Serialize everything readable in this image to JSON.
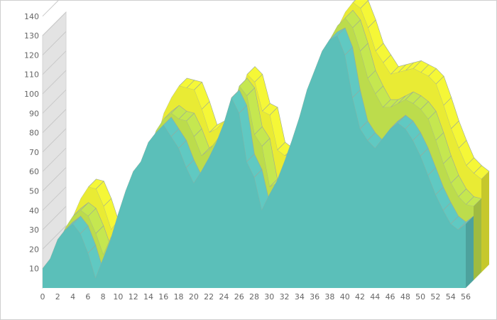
{
  "chart_data": {
    "type": "area",
    "style": "3d-stacked",
    "grid": false,
    "legend": "none",
    "x": [
      0,
      1,
      2,
      3,
      4,
      5,
      6,
      7,
      8,
      9,
      10,
      11,
      12,
      13,
      14,
      15,
      16,
      17,
      18,
      19,
      20,
      21,
      22,
      23,
      24,
      25,
      26,
      27,
      28,
      29,
      30,
      31,
      32,
      33,
      34,
      35,
      36,
      37,
      38,
      39,
      40,
      41,
      42,
      43,
      44,
      45,
      46,
      47,
      48,
      49,
      50,
      51,
      52,
      53,
      54,
      55,
      56
    ],
    "x_tick_labels": [
      "0",
      "2",
      "4",
      "6",
      "8",
      "10",
      "12",
      "14",
      "16",
      "18",
      "20",
      "22",
      "24",
      "26",
      "28",
      "30",
      "32",
      "34",
      "36",
      "38",
      "40",
      "42",
      "44",
      "46",
      "48",
      "50",
      "52",
      "54",
      "56"
    ],
    "y_tick_labels": [
      "10",
      "20",
      "30",
      "40",
      "50",
      "60",
      "70",
      "80",
      "90",
      "100",
      "110",
      "120",
      "130",
      "140"
    ],
    "ylim": [
      0,
      150
    ],
    "series": [
      {
        "color": "#5bbfb9",
        "values": [
          10,
          15,
          25,
          30,
          33,
          28,
          18,
          5,
          15,
          25,
          38,
          50,
          60,
          65,
          75,
          80,
          84,
          78,
          72,
          62,
          54,
          60,
          67,
          75,
          85,
          98,
          90,
          65,
          57,
          40,
          48,
          55,
          65,
          76,
          88,
          102,
          112,
          122,
          128,
          130,
          120,
          98,
          82,
          76,
          72,
          77,
          82,
          85,
          82,
          76,
          68,
          58,
          48,
          40,
          33,
          30,
          33
        ]
      },
      {
        "color": "#bcdc4c",
        "values": [
          0,
          3,
          2,
          3,
          3,
          5,
          6,
          8,
          7,
          2,
          0,
          0,
          0,
          1,
          2,
          3,
          2,
          5,
          10,
          12,
          10,
          7,
          5,
          3,
          1,
          2,
          5,
          10,
          12,
          8,
          2,
          3,
          3,
          2,
          1,
          0,
          1,
          2,
          3,
          5,
          10,
          20,
          22,
          20,
          17,
          12,
          9,
          8,
          9,
          12,
          15,
          14,
          12,
          10,
          10,
          9,
          5
        ]
      },
      {
        "color": "#e9eb34",
        "values": [
          0,
          0,
          2,
          5,
          8,
          10,
          10,
          9,
          5,
          3,
          0,
          0,
          0,
          2,
          5,
          7,
          10,
          12,
          12,
          10,
          8,
          7,
          6,
          5,
          3,
          2,
          3,
          8,
          12,
          15,
          10,
          4,
          2,
          1,
          0,
          0,
          1,
          2,
          3,
          4,
          6,
          8,
          10,
          12,
          13,
          14,
          13,
          12,
          12,
          13,
          14,
          14,
          14,
          14,
          12,
          12,
          10
        ]
      }
    ]
  }
}
